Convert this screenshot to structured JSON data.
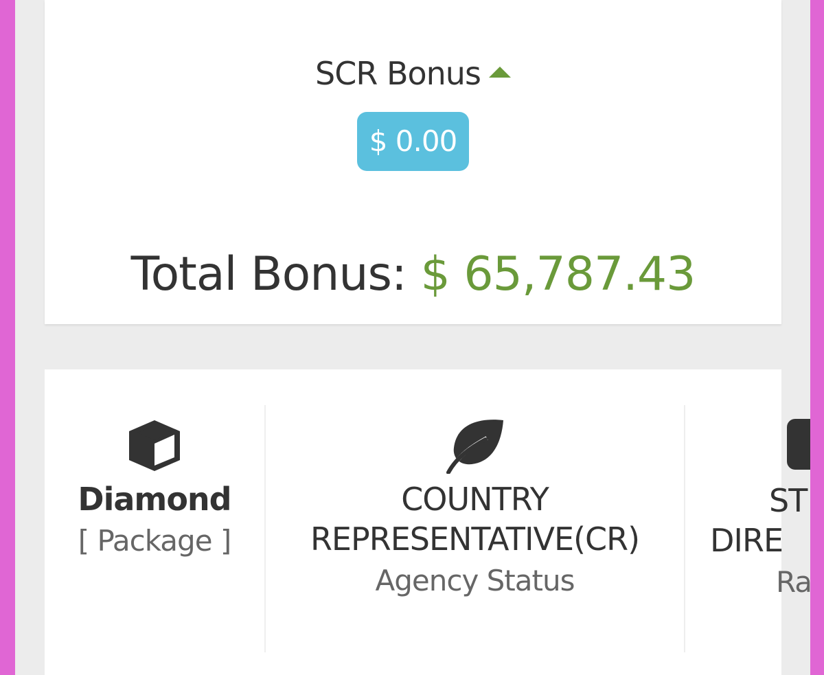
{
  "scr_bonus": {
    "label": "SCR Bonus",
    "toggle_icon": "caret-up-icon",
    "amount": "$ 0.00"
  },
  "total_bonus": {
    "label": "Total Bonus:",
    "amount": "$ 65,787.43"
  },
  "colors": {
    "accent_green": "#6a9a3a",
    "badge_blue": "#5bc0de"
  },
  "stats": [
    {
      "icon": "cube-icon",
      "title": "Diamond",
      "subtitle": "[ Package ]"
    },
    {
      "icon": "leaf-icon",
      "title": "COUNTRY REPRESENTATIVE(CR)",
      "subtitle": "Agency Status"
    },
    {
      "icon": "partial-icon",
      "title_line1": "ST",
      "title_line2": "DIRE",
      "subtitle": "Ra"
    }
  ]
}
